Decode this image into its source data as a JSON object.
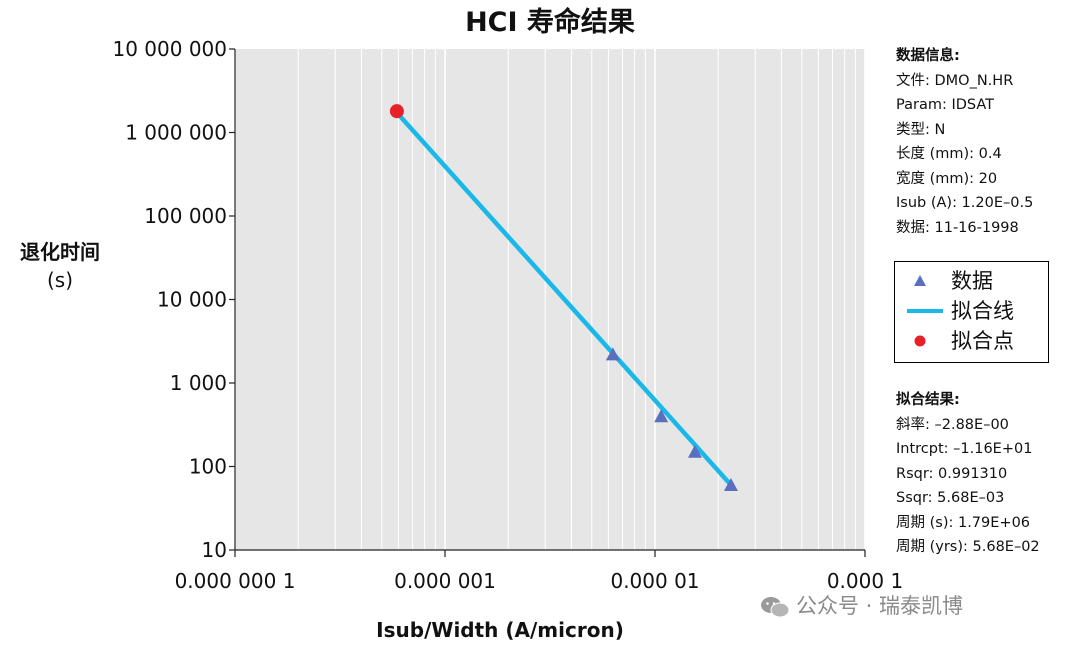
{
  "chart_data": {
    "type": "scatter",
    "title": "HCI 寿命结果",
    "xlabel": "Isub/Width (A/micron)",
    "ylabel": "退化时间",
    "ylabel_unit": "(s)",
    "x_scale": "log",
    "y_scale": "log",
    "xlim": [
      1e-07,
      0.0001
    ],
    "ylim": [
      10,
      10000000
    ],
    "x_ticks": [
      1e-07,
      1e-06,
      1e-05,
      0.0001
    ],
    "x_tick_labels": [
      "0.000 000 1",
      "0.000 001",
      "0.000 01",
      "0.000 1"
    ],
    "y_ticks": [
      10,
      100,
      1000,
      10000,
      100000,
      1000000,
      10000000
    ],
    "y_tick_labels": [
      "10",
      "100",
      "1 000",
      "10 000",
      "100 000",
      "1 000 000",
      "10 000 000"
    ],
    "grid": true,
    "legend_position": "right",
    "series": [
      {
        "name": "数据",
        "marker": "triangle",
        "color": "#5b6fbf",
        "x": [
          6.3e-06,
          1.07e-05,
          1.55e-05,
          2.3e-05
        ],
        "y": [
          2200,
          400,
          150,
          60
        ]
      },
      {
        "name": "拟合线",
        "marker": "line",
        "color": "#1ab8e8",
        "x": [
          6e-07,
          2.3e-05
        ],
        "y": [
          1650000,
          60
        ]
      },
      {
        "name": "拟合点",
        "marker": "circle",
        "color": "#e8202a",
        "x": [
          5.9e-07
        ],
        "y": [
          1800000
        ]
      }
    ]
  },
  "info": {
    "heading": "数据信息:",
    "lines": [
      "文件: DMO_N.HR",
      "Param: IDSAT",
      "类型: N",
      "长度 (mm): 0.4",
      "宽度 (mm):   20",
      "Isub (A): 1.20E–0.5",
      "数据: 11-16-1998"
    ]
  },
  "fit": {
    "heading": "拟合结果:",
    "lines": [
      "斜率: –2.88E–00",
      "Intrcpt: –1.16E+01",
      "Rsqr: 0.991310",
      "Ssqr: 5.68E–03",
      "周期 (s): 1.79E+06",
      "周期 (yrs): 5.68E–02"
    ]
  },
  "legend": {
    "items": [
      "数据",
      "拟合线",
      "拟合点"
    ]
  },
  "watermark": "公众号 · 瑞泰凯博",
  "colors": {
    "plot_bg": "#e6e6e6",
    "grid": "#ffffff",
    "fit_line": "#1ab8e8",
    "data": "#5b6fbf",
    "fit_point": "#e8202a"
  }
}
